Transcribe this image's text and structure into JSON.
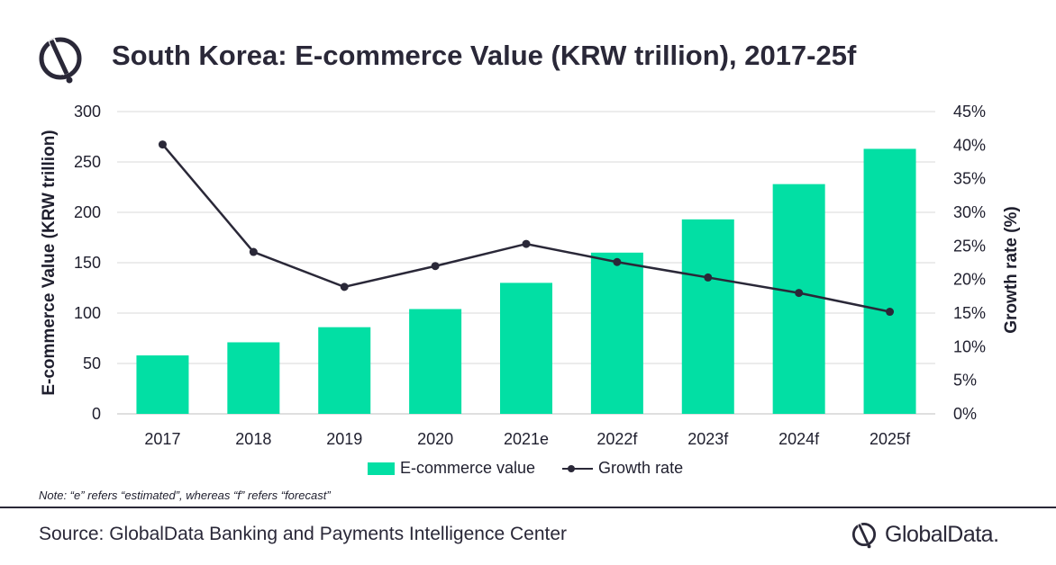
{
  "header": {
    "title": "South Korea: E-commerce Value (KRW trillion), 2017-25f"
  },
  "colors": {
    "bar": "#02dfa4",
    "line": "#2a2838",
    "grid": "#d9d9d9",
    "text": "#1f1f2e"
  },
  "chart_data": {
    "type": "bar",
    "categories": [
      "2017",
      "2018",
      "2019",
      "2020",
      "2021e",
      "2022f",
      "2023f",
      "2024f",
      "2025f"
    ],
    "series": [
      {
        "name": "E-commerce value",
        "type": "bar",
        "axis": "left",
        "values": [
          58,
          71,
          86,
          104,
          130,
          160,
          193,
          228,
          263
        ]
      },
      {
        "name": "Growth rate",
        "type": "line",
        "axis": "right",
        "values": [
          40.1,
          24.1,
          18.9,
          22.0,
          25.3,
          22.6,
          20.3,
          18.0,
          15.2
        ]
      }
    ],
    "ylabel": "E-commerce Value (KRW trillion)",
    "y2label": "Growth rate (%)",
    "ylim": [
      0,
      300
    ],
    "y2lim": [
      0,
      45
    ],
    "yticks": [
      "0",
      "50",
      "100",
      "150",
      "200",
      "250",
      "300"
    ],
    "y2ticks": [
      "0%",
      "5%",
      "10%",
      "15%",
      "20%",
      "25%",
      "30%",
      "35%",
      "40%",
      "45%"
    ],
    "grid": true,
    "legend_position": "bottom"
  },
  "legend": {
    "bar_label": "E-commerce value",
    "line_label": "Growth rate"
  },
  "footer": {
    "note": "Note: “e” refers “estimated”, whereas “f” refers “forecast”",
    "source": "Source: GlobalData Banking and Payments Intelligence Center",
    "brand": "GlobalData."
  },
  "icons": {
    "logo": "globaldata-logo-icon"
  }
}
